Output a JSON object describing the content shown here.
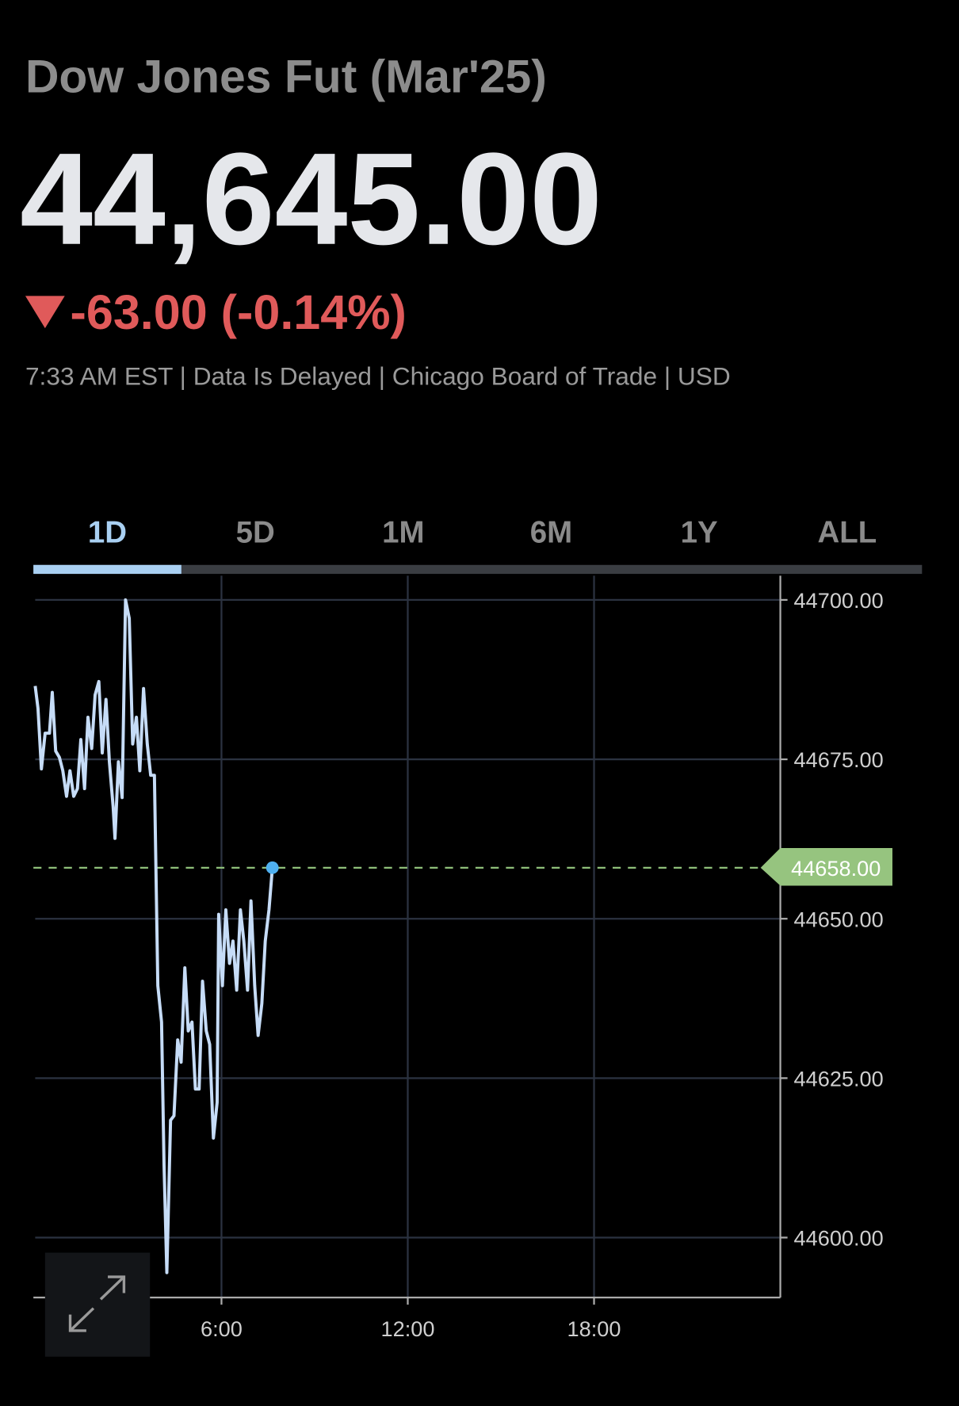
{
  "header": {
    "title": "Dow Jones Fut (Mar'25)",
    "price": "44,645.00",
    "change": "-63.00 (-0.14%)",
    "meta": "7:33 AM EST | Data Is Delayed | Chicago Board of Trade | USD"
  },
  "tabs": [
    "1D",
    "5D",
    "1M",
    "6M",
    "1Y",
    "ALL"
  ],
  "active_tab": 0,
  "chart_data": {
    "type": "line",
    "color": "#c6dcf7",
    "grid": true,
    "x": [
      0,
      0.09,
      0.2,
      0.32,
      0.46,
      0.55,
      0.66,
      0.78,
      0.89,
      1.01,
      1.12,
      1.24,
      1.36,
      1.47,
      1.59,
      1.7,
      1.82,
      1.93,
      2.05,
      2.16,
      2.28,
      2.39,
      2.51,
      2.57,
      2.68,
      2.8,
      2.91,
      3.03,
      3.14,
      3.26,
      3.37,
      3.49,
      3.61,
      3.72,
      3.84,
      3.95,
      4.07,
      4.15,
      4.24,
      4.36,
      4.47,
      4.59,
      4.7,
      4.82,
      4.93,
      5.05,
      5.16,
      5.28,
      5.39,
      5.51,
      5.62,
      5.74,
      5.86,
      5.91,
      6.03,
      6.14,
      6.26,
      6.37,
      6.49,
      6.61,
      6.72,
      6.84,
      6.95,
      7.07,
      7.18,
      7.3,
      7.41,
      7.53,
      7.64
    ],
    "values": [
      44686.5,
      44683,
      44673.5,
      44679.1,
      44679.1,
      44685.5,
      44676.3,
      44675.3,
      44673.2,
      44669.2,
      44673.2,
      44669.2,
      44670.4,
      44678.1,
      44670.4,
      44681.6,
      44676.7,
      44685.1,
      44687.2,
      44676,
      44684.4,
      44674.6,
      44667.6,
      44662.6,
      44674.6,
      44669,
      44700,
      44697.1,
      44677.4,
      44681.6,
      44673.2,
      44686.1,
      44677.4,
      44672.5,
      44672.5,
      44639.5,
      44633.8,
      44611.4,
      44594.5,
      44618.4,
      44619.1,
      44631,
      44627.5,
      44642.3,
      44632.4,
      44633.8,
      44623.3,
      44623.3,
      44640.2,
      44632.4,
      44630.3,
      44615.6,
      44621.2,
      44650.7,
      44639.5,
      44651.4,
      44643,
      44646.5,
      44638.8,
      44651.4,
      44646.5,
      44638.8,
      44652.8,
      44639.5,
      44631.7,
      44636.7,
      44646.5,
      44651.4,
      44658
    ],
    "xlim": [
      0,
      24
    ],
    "xticks": [
      {
        "value": 6,
        "label": "6:00"
      },
      {
        "value": 12,
        "label": "12:00"
      },
      {
        "value": 18,
        "label": "18:00"
      }
    ],
    "ylim": [
      44590.6,
      44703.8
    ],
    "yticks": [
      {
        "value": 44600,
        "label": "44600.00"
      },
      {
        "value": 44625,
        "label": "44625.00"
      },
      {
        "value": 44650,
        "label": "44650.00"
      },
      {
        "value": 44675,
        "label": "44675.00"
      },
      {
        "value": 44700,
        "label": "44700.00"
      }
    ],
    "reference_line": {
      "value": 44658,
      "label": "44658.00"
    }
  }
}
